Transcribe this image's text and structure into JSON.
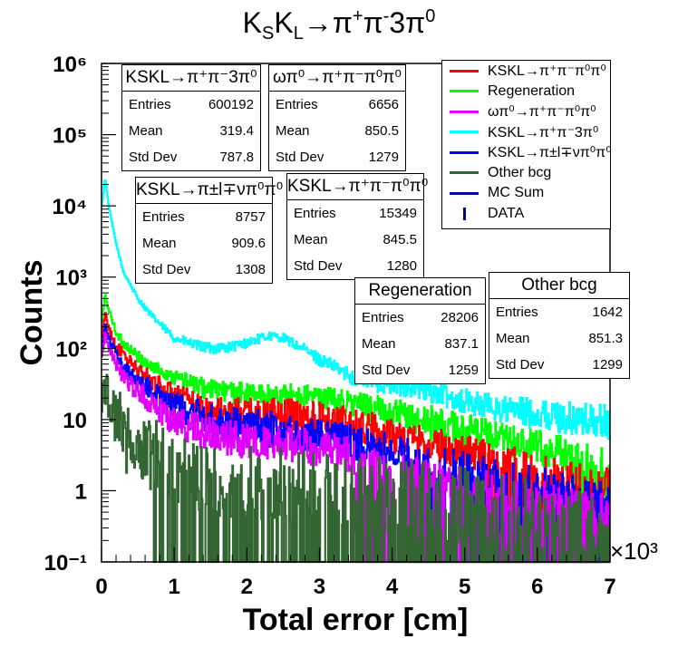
{
  "chart_data": {
    "type": "histogram",
    "title": "K_SK_L→π⁺π⁻3π⁰",
    "xlabel": "Total error [cm]",
    "ylabel": "Counts",
    "x_multiplier": "×10³",
    "xlim": [
      0,
      7000
    ],
    "ylim": [
      0.1,
      1000000
    ],
    "yscale": "log",
    "x_ticks": [
      "0",
      "1",
      "2",
      "3",
      "4",
      "5",
      "6",
      "7"
    ],
    "y_ticks": [
      "10⁻¹",
      "1",
      "10",
      "10²",
      "10³",
      "10⁴",
      "10⁵",
      "10⁶"
    ],
    "series": [
      {
        "name": "KSKL→π⁺π⁻3π⁰",
        "color": "#00ffff",
        "x": [
          0,
          50,
          100,
          200,
          300,
          500,
          700,
          1000,
          1300,
          1500,
          1800,
          2000,
          2300,
          2500,
          2800,
          3000,
          3500,
          4000,
          4500,
          5000,
          5500,
          6000,
          6500,
          7000
        ],
        "y": [
          9000,
          25000,
          10000,
          3000,
          1200,
          500,
          280,
          140,
          110,
          100,
          105,
          120,
          150,
          140,
          95,
          70,
          38,
          30,
          25,
          18,
          14,
          12,
          10,
          9
        ]
      },
      {
        "name": "Regeneration",
        "color": "#00ff00",
        "x": [
          0,
          50,
          100,
          200,
          300,
          500,
          700,
          1000,
          1300,
          1500,
          2000,
          2500,
          3000,
          3500,
          4000,
          4500,
          5000,
          5500,
          6000,
          6500,
          7000
        ],
        "y": [
          200,
          550,
          350,
          170,
          120,
          75,
          55,
          40,
          30,
          26,
          23,
          22,
          21,
          16,
          12,
          9,
          7,
          5,
          4,
          3,
          2.5
        ]
      },
      {
        "name": "KSKL→π⁺π⁻π⁰π⁰",
        "color": "#ff0000",
        "x": [
          0,
          50,
          100,
          200,
          300,
          500,
          700,
          1000,
          1300,
          1500,
          2000,
          2500,
          3000,
          3500,
          4000,
          4500,
          5000,
          5500,
          6000,
          6500,
          7000
        ],
        "y": [
          120,
          300,
          200,
          110,
          80,
          50,
          35,
          22,
          16,
          13,
          12,
          12,
          11,
          8,
          6,
          4.5,
          3.5,
          2.5,
          2,
          1.5,
          1.2
        ]
      },
      {
        "name": "KSKL→π±l∓νπ⁰π⁰",
        "color": "#0000ff",
        "x": [
          0,
          50,
          100,
          200,
          300,
          500,
          700,
          1000,
          1300,
          1500,
          2000,
          2500,
          3000,
          3500,
          4000,
          4500,
          5000,
          5500,
          6000,
          6500,
          7000
        ],
        "y": [
          80,
          200,
          140,
          80,
          55,
          35,
          25,
          16,
          12,
          10,
          8,
          7,
          6,
          4.5,
          3.5,
          2.5,
          2,
          1.5,
          1.2,
          1,
          0.8
        ]
      },
      {
        "name": "ωπ⁰→π⁺π⁻π⁰π⁰",
        "color": "#e000ff",
        "x": [
          0,
          50,
          100,
          200,
          300,
          500,
          700,
          1000,
          1300,
          1500,
          2000,
          2500,
          3000,
          3500,
          4000,
          4500,
          5000,
          5500,
          6000,
          6500,
          7000
        ],
        "y": [
          70,
          170,
          110,
          60,
          40,
          25,
          17,
          10,
          7,
          6,
          5,
          4.5,
          4,
          3,
          2,
          1.5,
          1.2,
          1,
          0.8,
          0.6,
          0.5
        ]
      },
      {
        "name": "Other bcg",
        "color": "#336633",
        "x": [
          0,
          50,
          100,
          200,
          300,
          500,
          700,
          1000,
          1300,
          1500,
          2000,
          2500,
          3000,
          3500,
          4000,
          4500,
          5000,
          5500,
          6000,
          6500,
          7000
        ],
        "y": [
          12,
          30,
          22,
          11,
          7,
          4,
          3,
          2,
          1.6,
          1.4,
          1.2,
          1.1,
          1,
          0.9,
          0.8,
          0.7,
          0.6,
          0.5,
          0.4,
          0.35,
          0.3
        ]
      }
    ],
    "legend": {
      "placement": "top-right",
      "entries": [
        {
          "label": "KSKL→π⁺π⁻π⁰π⁰",
          "color": "#ff0000",
          "style": "line"
        },
        {
          "label": "Regeneration",
          "color": "#00ff00",
          "style": "line"
        },
        {
          "label": "ωπ⁰→π⁺π⁻π⁰π⁰",
          "color": "#e000ff",
          "style": "line"
        },
        {
          "label": "KSKL→π⁺π⁻3π⁰",
          "color": "#00ffff",
          "style": "line"
        },
        {
          "label": "KSKL→π±l∓νπ⁰π⁰",
          "color": "#0000ff",
          "style": "line"
        },
        {
          "label": "Other bcg",
          "color": "#336633",
          "style": "line"
        },
        {
          "label": "MC Sum",
          "color": "#000099",
          "style": "line"
        },
        {
          "label": "DATA",
          "color": "#000099",
          "style": "marker"
        }
      ]
    },
    "stat_boxes": [
      {
        "title": "KSKL→π⁺π⁻3π⁰",
        "entries": "600192",
        "mean": "319.4",
        "std_dev": "787.8"
      },
      {
        "title": "ωπ⁰→π⁺π⁻π⁰π⁰",
        "entries": "6656",
        "mean": "850.5",
        "std_dev": "1279"
      },
      {
        "title": "KSKL→π±l∓νπ⁰π⁰",
        "entries": "8757",
        "mean": "909.6",
        "std_dev": "1308"
      },
      {
        "title": "KSKL→π⁺π⁻π⁰π⁰",
        "entries": "15349",
        "mean": "845.5",
        "std_dev": "1280"
      },
      {
        "title": "Regeneration",
        "entries": "28206",
        "mean": "837.1",
        "std_dev": "1259"
      },
      {
        "title": "Other bcg",
        "entries": "1642",
        "mean": "851.3",
        "std_dev": "1299"
      }
    ]
  },
  "labels": {
    "entries": "Entries",
    "mean": "Mean",
    "std_dev": "Std Dev"
  }
}
